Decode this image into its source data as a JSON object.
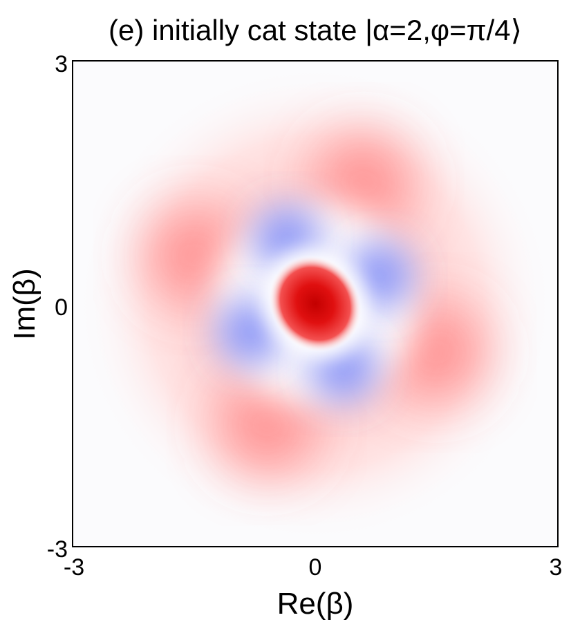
{
  "chart_data": {
    "type": "heatmap",
    "title": "(e)  initially cat state |α=2,φ=π/4⟩",
    "xlabel": "Re(β)",
    "ylabel": "Im(β)",
    "xlim": [
      -3,
      3
    ],
    "ylim": [
      -3,
      3
    ],
    "x_ticks": [
      "-3",
      "0",
      "3"
    ],
    "y_ticks": [
      "-3",
      "0",
      "3"
    ],
    "grid": false,
    "legend": "none",
    "colormap": {
      "negative": "#5c6cf5",
      "zero": "#ffffff",
      "positive": "#d90000",
      "background": "#fbfbfd"
    },
    "features": [
      {
        "kind": "central-peak",
        "re": 0.0,
        "im": 0.0,
        "value": 1.0
      },
      {
        "kind": "ring-lobe",
        "re": 0.6,
        "im": 1.5,
        "value": 0.5
      },
      {
        "kind": "ring-lobe",
        "re": -1.5,
        "im": 0.6,
        "value": 0.5
      },
      {
        "kind": "ring-lobe",
        "re": -0.6,
        "im": -1.5,
        "value": 0.5
      },
      {
        "kind": "ring-lobe",
        "re": 1.5,
        "im": -0.6,
        "value": 0.5
      },
      {
        "kind": "negative-lobe",
        "re": 0.8,
        "im": 0.35,
        "value": -0.32
      },
      {
        "kind": "negative-lobe",
        "re": -0.35,
        "im": 0.8,
        "value": -0.32
      },
      {
        "kind": "negative-lobe",
        "re": -0.8,
        "im": -0.35,
        "value": -0.32
      },
      {
        "kind": "negative-lobe",
        "re": 0.35,
        "im": -0.8,
        "value": -0.32
      }
    ]
  }
}
